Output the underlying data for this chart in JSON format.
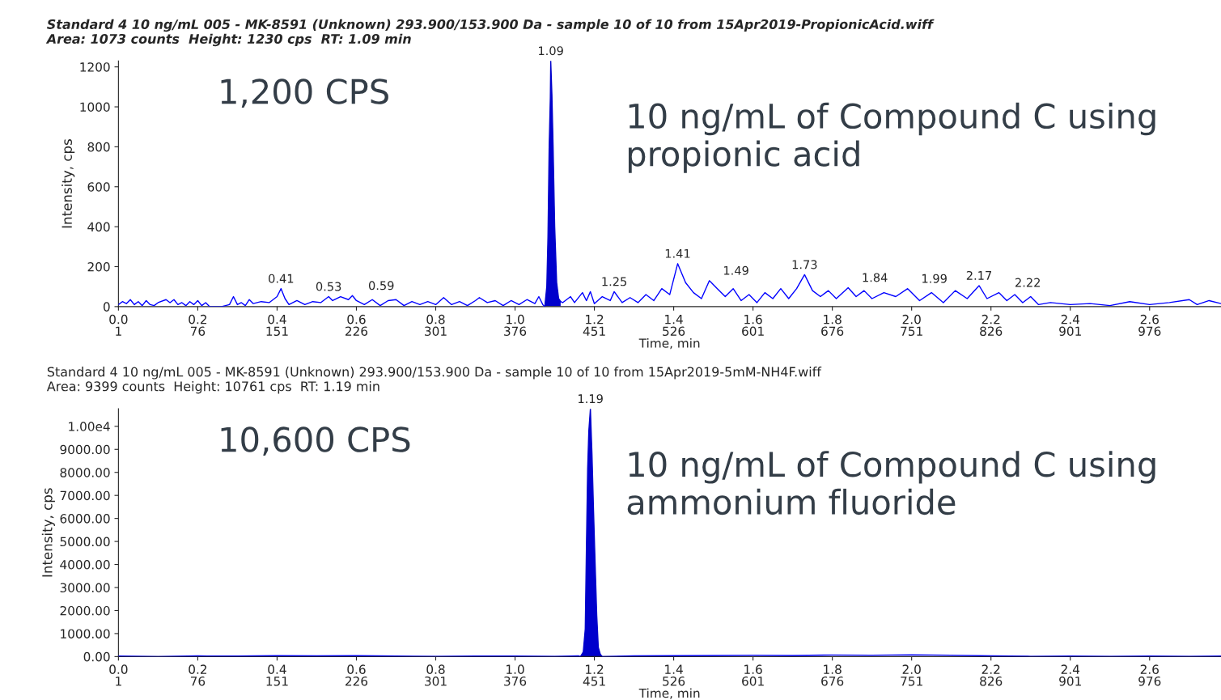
{
  "chart_data": [
    {
      "type": "line",
      "title": "Standard 4 10 ng/mL 005 - MK-8591 (Unknown) 293.900/153.900 Da - sample 10 of 10 from 15Apr2019-PropionicAcid.wiff\nArea: 1073 counts  Height: 1230 cps  RT: 1.09 min",
      "xlabel": "Time, min",
      "ylabel": "Intensity, cps",
      "xlim": [
        0,
        2.78
      ],
      "ylim": [
        0,
        1230
      ],
      "xticks": [
        {
          "value": 0.0,
          "label": "0.0"
        },
        {
          "value": 0.2,
          "label": "0.2"
        },
        {
          "value": 0.4,
          "label": "0.4"
        },
        {
          "value": 0.6,
          "label": "0.6"
        },
        {
          "value": 0.8,
          "label": "0.8"
        },
        {
          "value": 1.0,
          "label": "1.0"
        },
        {
          "value": 1.2,
          "label": "1.2"
        },
        {
          "value": 1.4,
          "label": "1.4"
        },
        {
          "value": 1.6,
          "label": "1.6"
        },
        {
          "value": 1.8,
          "label": "1.8"
        },
        {
          "value": 2.0,
          "label": "2.0"
        },
        {
          "value": 2.2,
          "label": "2.2"
        },
        {
          "value": 2.4,
          "label": "2.4"
        },
        {
          "value": 2.6,
          "label": "2.6"
        }
      ],
      "x2lim": [
        1,
        1043.5
      ],
      "x2ticks": [
        1,
        76,
        151,
        226,
        301,
        376,
        451,
        526,
        601,
        676,
        751,
        826,
        901,
        976
      ],
      "yticks": [
        0,
        200,
        400,
        600,
        800,
        1000,
        1200
      ],
      "series": [
        {
          "type": "line",
          "color": "#0000ff",
          "x": [
            0.0,
            0.01,
            0.02,
            0.03,
            0.04,
            0.05,
            0.06,
            0.07,
            0.08,
            0.09,
            0.1,
            0.12,
            0.13,
            0.14,
            0.15,
            0.16,
            0.17,
            0.18,
            0.19,
            0.2,
            0.21,
            0.22,
            0.23,
            0.26,
            0.28,
            0.29,
            0.3,
            0.31,
            0.32,
            0.33,
            0.34,
            0.36,
            0.38,
            0.4,
            0.41,
            0.42,
            0.43,
            0.45,
            0.47,
            0.49,
            0.51,
            0.53,
            0.54,
            0.56,
            0.58,
            0.59,
            0.6,
            0.62,
            0.64,
            0.66,
            0.68,
            0.7,
            0.72,
            0.74,
            0.76,
            0.78,
            0.8,
            0.82,
            0.84,
            0.86,
            0.88,
            0.9,
            0.91,
            0.93,
            0.95,
            0.97,
            0.99,
            1.01,
            1.03,
            1.05,
            1.06,
            1.07,
            1.075
          ],
          "values": [
            10,
            25,
            15,
            35,
            10,
            25,
            5,
            30,
            10,
            5,
            20,
            35,
            20,
            35,
            10,
            20,
            5,
            25,
            10,
            30,
            5,
            20,
            0,
            0,
            10,
            50,
            10,
            20,
            5,
            35,
            15,
            25,
            20,
            50,
            90,
            40,
            10,
            30,
            10,
            25,
            20,
            50,
            30,
            50,
            35,
            55,
            30,
            10,
            35,
            5,
            30,
            35,
            5,
            25,
            10,
            25,
            10,
            45,
            10,
            25,
            5,
            30,
            45,
            20,
            30,
            5,
            30,
            10,
            35,
            15,
            50,
            10,
            0
          ]
        },
        {
          "type": "area",
          "color": "#0000cc",
          "x": [
            1.075,
            1.08,
            1.083,
            1.086,
            1.089,
            1.09,
            1.093,
            1.096,
            1.1,
            1.105,
            1.11,
            1.115
          ],
          "values": [
            0,
            100,
            350,
            800,
            1050,
            1230,
            1060,
            800,
            400,
            120,
            40,
            25
          ]
        },
        {
          "type": "line",
          "color": "#0000ff",
          "x": [
            1.115,
            1.12,
            1.14,
            1.15,
            1.17,
            1.18,
            1.19,
            1.2,
            1.22,
            1.24,
            1.25,
            1.27,
            1.29,
            1.31,
            1.33,
            1.35,
            1.37,
            1.39,
            1.41,
            1.43,
            1.45,
            1.47,
            1.49,
            1.51,
            1.53,
            1.55,
            1.57,
            1.59,
            1.61,
            1.63,
            1.65,
            1.67,
            1.69,
            1.71,
            1.73,
            1.75,
            1.77,
            1.79,
            1.81,
            1.84,
            1.86,
            1.88,
            1.9,
            1.93,
            1.96,
            1.99,
            2.02,
            2.05,
            2.08,
            2.11,
            2.14,
            2.17,
            2.19,
            2.22,
            2.24,
            2.26,
            2.28,
            2.3,
            2.32,
            2.35,
            2.4,
            2.45,
            2.5,
            2.55,
            2.6,
            2.65,
            2.7,
            2.72,
            2.75,
            2.78
          ],
          "values": [
            25,
            20,
            50,
            20,
            70,
            30,
            75,
            15,
            50,
            30,
            75,
            20,
            45,
            20,
            60,
            30,
            90,
            60,
            215,
            120,
            70,
            40,
            130,
            90,
            50,
            90,
            30,
            60,
            20,
            70,
            40,
            90,
            40,
            90,
            160,
            80,
            50,
            80,
            40,
            95,
            50,
            80,
            40,
            70,
            50,
            90,
            30,
            70,
            20,
            80,
            40,
            105,
            40,
            70,
            30,
            60,
            20,
            50,
            10,
            20,
            10,
            15,
            5,
            25,
            10,
            20,
            35,
            10,
            30,
            15
          ]
        }
      ],
      "annotations": [
        "1,200 CPS",
        "10 ng/mL of Compound C using\npropionic acid",
        {
          "text": "0.41",
          "x": 0.41,
          "y": 90
        },
        {
          "text": "0.53",
          "x": 0.53,
          "y": 50
        },
        {
          "text": "0.59",
          "x": 0.59,
          "y": 55
        },
        {
          "text": "1.09",
          "x": 1.09,
          "y": 1230
        },
        {
          "text": "1.25",
          "x": 1.25,
          "y": 75
        },
        {
          "text": "1.41",
          "x": 1.41,
          "y": 215
        },
        {
          "text": "1.49",
          "x": 1.49,
          "y": 130
        },
        {
          "text": "1.73",
          "x": 1.73,
          "y": 160
        },
        {
          "text": "1.84",
          "x": 1.84,
          "y": 95
        },
        {
          "text": "1.99",
          "x": 1.99,
          "y": 90
        },
        {
          "text": "2.17",
          "x": 2.17,
          "y": 105
        },
        {
          "text": "2.22",
          "x": 2.22,
          "y": 70
        }
      ]
    },
    {
      "type": "line",
      "title": "Standard 4 10 ng/mL 005 - MK-8591 (Unknown) 293.900/153.900 Da - sample 10 of 10 from 15Apr2019-5mM-NH4F.wiff\nArea: 9399 counts  Height: 10761 cps  RT: 1.19 min",
      "xlabel": "Time, min",
      "ylabel": "Intensity, cps",
      "xlim": [
        0,
        2.78
      ],
      "ylim": [
        0,
        10761
      ],
      "xticks": [
        {
          "value": 0.0,
          "label": "0.0"
        },
        {
          "value": 0.2,
          "label": "0.2"
        },
        {
          "value": 0.4,
          "label": "0.4"
        },
        {
          "value": 0.6,
          "label": "0.6"
        },
        {
          "value": 0.8,
          "label": "0.8"
        },
        {
          "value": 1.0,
          "label": "1.0"
        },
        {
          "value": 1.2,
          "label": "1.2"
        },
        {
          "value": 1.4,
          "label": "1.4"
        },
        {
          "value": 1.6,
          "label": "1.6"
        },
        {
          "value": 1.8,
          "label": "1.8"
        },
        {
          "value": 2.0,
          "label": "2.0"
        },
        {
          "value": 2.2,
          "label": "2.2"
        },
        {
          "value": 2.4,
          "label": "2.4"
        },
        {
          "value": 2.6,
          "label": "2.6"
        }
      ],
      "x2lim": [
        1,
        1043.5
      ],
      "x2ticks": [
        1,
        76,
        151,
        226,
        301,
        376,
        451,
        526,
        601,
        676,
        751,
        826,
        901,
        976
      ],
      "yticks": [
        {
          "value": 0,
          "label": "0.00"
        },
        {
          "value": 1000,
          "label": "1000.00"
        },
        {
          "value": 2000,
          "label": "2000.00"
        },
        {
          "value": 3000,
          "label": "3000.00"
        },
        {
          "value": 4000,
          "label": "4000.00"
        },
        {
          "value": 5000,
          "label": "5000.00"
        },
        {
          "value": 6000,
          "label": "6000.00"
        },
        {
          "value": 7000,
          "label": "7000.00"
        },
        {
          "value": 8000,
          "label": "8000.00"
        },
        {
          "value": 9000,
          "label": "9000.00"
        },
        {
          "value": 10000,
          "label": "1.00e4"
        }
      ],
      "series": [
        {
          "type": "line",
          "color": "#0000ff",
          "x": [
            0.0,
            0.1,
            0.2,
            0.3,
            0.4,
            0.5,
            0.6,
            0.7,
            0.8,
            0.9,
            1.0,
            1.1,
            1.16,
            1.165
          ],
          "values": [
            20,
            0,
            30,
            20,
            40,
            30,
            40,
            20,
            10,
            20,
            20,
            10,
            30,
            0
          ]
        },
        {
          "type": "area",
          "color": "#0000cc",
          "x": [
            1.165,
            1.172,
            1.177,
            1.18,
            1.183,
            1.186,
            1.19,
            1.194,
            1.198,
            1.202,
            1.206,
            1.21,
            1.215,
            1.22
          ],
          "values": [
            0,
            200,
            1200,
            4800,
            8100,
            9800,
            10761,
            8800,
            6300,
            4000,
            1800,
            400,
            100,
            0
          ]
        },
        {
          "type": "line",
          "color": "#0000ff",
          "x": [
            1.22,
            1.3,
            1.4,
            1.5,
            1.6,
            1.7,
            1.8,
            1.9,
            2.0,
            2.1,
            2.2,
            2.3,
            2.4,
            2.5,
            2.6,
            2.7,
            2.78
          ],
          "values": [
            0,
            30,
            40,
            50,
            60,
            50,
            70,
            60,
            80,
            60,
            30,
            10,
            20,
            10,
            20,
            10,
            20
          ]
        }
      ],
      "annotations": [
        "10,600 CPS",
        "10 ng/mL of Compound C using\nammonium fluoride",
        {
          "text": "1.19",
          "x": 1.19,
          "y": 10761
        }
      ]
    }
  ]
}
